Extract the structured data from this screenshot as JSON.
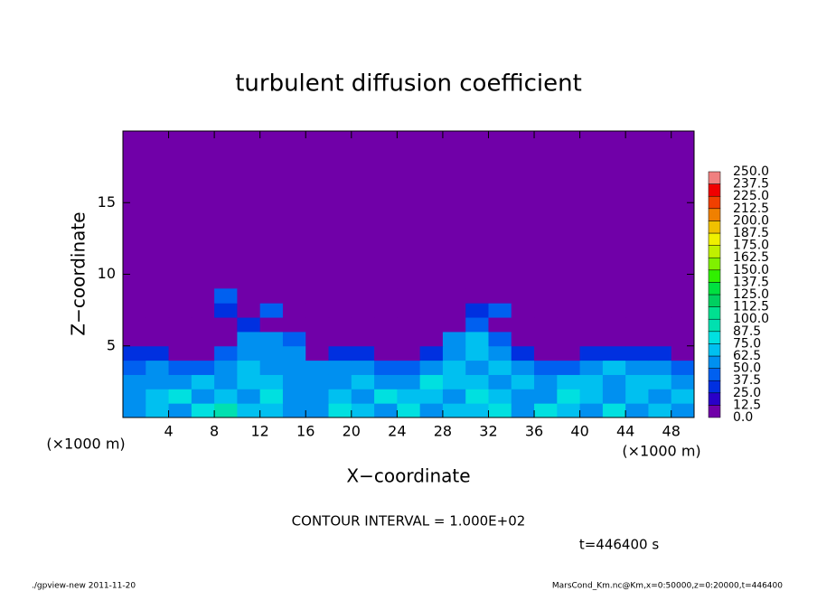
{
  "chart_data": {
    "type": "heatmap",
    "title": "turbulent diffusion coefficient",
    "x_label": "X−coordinate",
    "y_label": "Z−coordinate",
    "x_unit_left": "(×1000 m)",
    "x_unit_right": "(×1000 m)",
    "contour_note": "CONTOUR INTERVAL = 1.000E+02",
    "time_note": "t=446400 s",
    "footer_left": "./gpview-new  2011-11-20",
    "footer_right": "MarsCond_Km.nc@Km,x=0:50000,z=0:20000,t=446400",
    "xlim": [
      0,
      50
    ],
    "ylim": [
      0,
      20
    ],
    "xticks": [
      4,
      8,
      12,
      16,
      20,
      24,
      28,
      32,
      36,
      40,
      44,
      48
    ],
    "yticks": [
      5,
      10,
      15
    ],
    "field": {
      "xbins": [
        0,
        2,
        4,
        6,
        8,
        10,
        12,
        14,
        16,
        18,
        20,
        22,
        24,
        26,
        28,
        30,
        32,
        34,
        36,
        38,
        40,
        42,
        44,
        46,
        48,
        50
      ],
      "zbins": [
        0,
        1,
        2,
        3,
        4,
        5,
        6,
        7,
        8,
        9
      ],
      "values": [
        [
          60,
          72,
          55,
          80,
          90,
          65,
          70,
          60,
          55,
          75,
          68,
          60,
          82,
          58,
          66,
          72,
          80,
          60,
          85,
          70,
          62,
          75,
          58,
          66,
          60
        ],
        [
          55,
          68,
          75,
          60,
          70,
          62,
          78,
          58,
          62,
          70,
          55,
          80,
          65,
          72,
          60,
          85,
          70,
          58,
          62,
          78,
          68,
          60,
          72,
          55,
          64
        ],
        [
          62,
          50,
          58,
          72,
          60,
          70,
          65,
          62,
          58,
          52,
          74,
          60,
          58,
          76,
          64,
          72,
          60,
          70,
          50,
          66,
          72,
          58,
          64,
          70,
          55
        ],
        [
          48,
          58,
          45,
          40,
          52,
          66,
          60,
          56,
          50,
          62,
          58,
          46,
          44,
          55,
          70,
          62,
          68,
          52,
          40,
          45,
          60,
          64,
          55,
          58,
          42
        ],
        [
          30,
          30,
          0,
          0,
          45,
          60,
          58,
          55,
          0,
          30,
          30,
          0,
          0,
          30,
          60,
          70,
          55,
          30,
          0,
          0,
          30,
          30,
          30,
          30,
          0
        ],
        [
          0,
          0,
          0,
          0,
          0,
          55,
          50,
          45,
          0,
          0,
          0,
          0,
          0,
          0,
          50,
          65,
          40,
          0,
          0,
          0,
          0,
          0,
          0,
          0,
          0
        ],
        [
          0,
          0,
          0,
          0,
          0,
          30,
          0,
          0,
          0,
          0,
          0,
          0,
          0,
          0,
          0,
          45,
          0,
          0,
          0,
          0,
          0,
          0,
          0,
          0,
          0
        ],
        [
          0,
          0,
          0,
          0,
          35,
          0,
          40,
          0,
          0,
          0,
          0,
          0,
          0,
          0,
          0,
          35,
          40,
          0,
          0,
          0,
          0,
          0,
          0,
          0,
          0
        ],
        [
          0,
          0,
          0,
          0,
          40,
          0,
          0,
          0,
          0,
          0,
          0,
          0,
          0,
          0,
          0,
          0,
          0,
          0,
          0,
          0,
          0,
          0,
          0,
          0,
          0
        ]
      ]
    },
    "colorbar": {
      "levels": [
        {
          "value": 0,
          "label": "0.0"
        },
        12.5,
        {
          "value": 25,
          "label": "25.0"
        },
        37.5,
        {
          "value": 50,
          "label": "50.0"
        },
        62.5,
        {
          "value": 75,
          "label": "75.0"
        },
        87.5,
        {
          "value": 100,
          "label": "100.0"
        },
        112.5,
        {
          "value": 125,
          "label": "125.0"
        },
        137.5,
        {
          "value": 150,
          "label": "150.0"
        },
        162.5,
        {
          "value": 175,
          "label": "175.0"
        },
        187.5,
        {
          "value": 200,
          "label": "200.0"
        },
        212.5,
        {
          "value": 225,
          "label": "225.0"
        },
        237.5,
        {
          "value": 250,
          "label": "250.0"
        }
      ],
      "colors": [
        "#7000a8",
        "#2a00c8",
        "#0030e0",
        "#0060f0",
        "#0090f0",
        "#00c0f0",
        "#00e0e0",
        "#00e0b0",
        "#00e090",
        "#00d060",
        "#00e040",
        "#30f000",
        "#80f000",
        "#c0f000",
        "#f0f000",
        "#f0c000",
        "#f08000",
        "#f04000",
        "#f00000",
        "#f08080"
      ]
    }
  }
}
